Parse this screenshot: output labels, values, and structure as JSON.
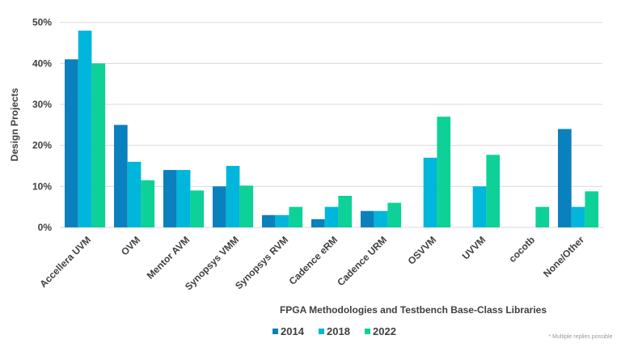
{
  "chart_data": {
    "type": "bar",
    "title": "",
    "xlabel": "FPGA Methodologies and Testbench Base-Class Libraries",
    "ylabel": "Design Projects",
    "ylim": [
      0,
      50
    ],
    "yticks": [
      "0%",
      "10%",
      "20%",
      "30%",
      "40%",
      "50%"
    ],
    "grid": true,
    "legend_placement": "bottom",
    "categories": [
      "Accellera UVM",
      "OVM",
      "Mentor AVM",
      "Synopsys VMM",
      "Synopsys RVM",
      "Cadence eRM",
      "Cadence URM",
      "OSVVM",
      "UVVM",
      "cocotb",
      "None/Other"
    ],
    "series": [
      {
        "name": "2014",
        "color": "#0a80bd",
        "values": [
          41,
          25,
          14,
          10,
          3,
          2,
          4,
          0,
          0,
          0,
          24
        ]
      },
      {
        "name": "2018",
        "color": "#00b6da",
        "values": [
          48,
          16,
          14,
          15,
          3,
          5,
          4,
          17,
          10,
          0,
          5
        ]
      },
      {
        "name": "2022",
        "color": "#0ed197",
        "values": [
          40,
          11.5,
          9,
          10.2,
          5,
          7.7,
          6,
          27,
          17.7,
          5,
          8.8
        ]
      }
    ],
    "footnote": "* Multiple replies possible"
  }
}
